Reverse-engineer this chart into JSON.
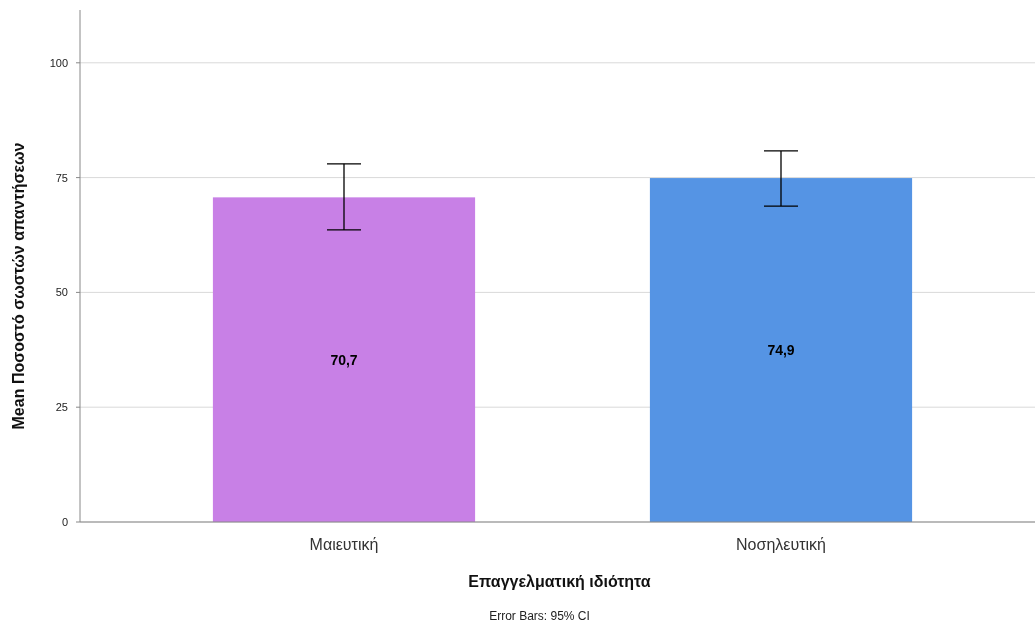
{
  "chart_data": {
    "type": "bar",
    "xlabel": "Επαγγελματική ιδιότητα",
    "ylabel": "Mean Ποσοστό σωστών απαντήσεων",
    "categories": [
      "Μαιευτική",
      "Νοσηλευτική"
    ],
    "values": [
      70.7,
      74.9
    ],
    "colors": [
      "#c880e6",
      "#5594e4"
    ],
    "value_labels": [
      "70,7",
      "74,9"
    ],
    "errors": [
      [
        63.6,
        78.0
      ],
      [
        68.8,
        80.8
      ]
    ],
    "ylim": [
      0,
      111.5
    ],
    "yticks": [
      0,
      25,
      50,
      75,
      100
    ],
    "grid": "y",
    "annotations": [
      "Error Bars: 95% CI"
    ]
  }
}
